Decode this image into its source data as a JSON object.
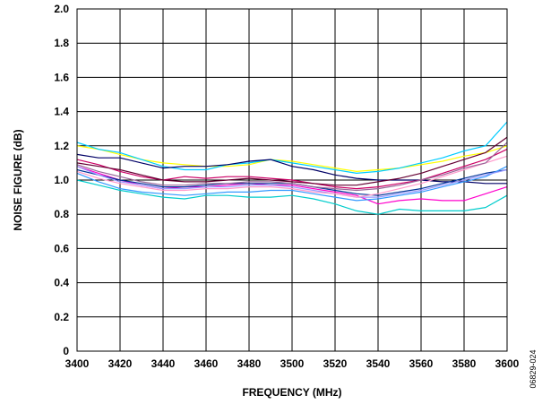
{
  "chart_data": {
    "type": "line",
    "title": "",
    "xlabel": "FREQUENCY (MHz)",
    "ylabel": "NOISE FIGURE (dB)",
    "xlim": [
      3400,
      3600
    ],
    "ylim": [
      0,
      2.0
    ],
    "xticks": [
      3400,
      3420,
      3440,
      3460,
      3480,
      3500,
      3520,
      3540,
      3560,
      3580,
      3600
    ],
    "yticks": [
      "0",
      "0.2",
      "0.4",
      "0.6",
      "0.8",
      "1.0",
      "1.2",
      "1.4",
      "1.6",
      "1.8",
      "2.0"
    ],
    "grid": true,
    "legend": "none",
    "x": [
      3400,
      3410,
      3420,
      3430,
      3440,
      3450,
      3460,
      3470,
      3480,
      3490,
      3500,
      3510,
      3520,
      3530,
      3540,
      3550,
      3560,
      3570,
      3580,
      3590,
      3600
    ],
    "series": [
      {
        "color": "#ffff00",
        "values": [
          1.2,
          1.18,
          1.15,
          1.12,
          1.1,
          1.09,
          1.08,
          1.08,
          1.09,
          1.12,
          1.11,
          1.09,
          1.07,
          1.05,
          1.06,
          1.07,
          1.09,
          1.11,
          1.14,
          1.16,
          1.2
        ]
      },
      {
        "color": "#00ccff",
        "values": [
          1.22,
          1.18,
          1.16,
          1.12,
          1.08,
          1.06,
          1.06,
          1.09,
          1.1,
          1.12,
          1.1,
          1.08,
          1.06,
          1.04,
          1.05,
          1.07,
          1.1,
          1.13,
          1.17,
          1.2,
          1.34
        ]
      },
      {
        "color": "#000066",
        "values": [
          1.15,
          1.13,
          1.13,
          1.1,
          1.07,
          1.08,
          1.08,
          1.09,
          1.11,
          1.12,
          1.08,
          1.06,
          1.03,
          1.01,
          1.0,
          1.0,
          1.0,
          0.99,
          0.99,
          0.98,
          0.98
        ]
      },
      {
        "color": "#cc0066",
        "values": [
          1.12,
          1.09,
          1.05,
          1.02,
          1.0,
          1.02,
          1.01,
          1.02,
          1.02,
          1.01,
          1.0,
          0.98,
          0.96,
          0.95,
          0.96,
          0.98,
          1.0,
          1.04,
          1.08,
          1.12,
          1.18
        ]
      },
      {
        "color": "#660033",
        "values": [
          1.1,
          1.08,
          1.06,
          1.03,
          1.0,
          0.99,
          0.99,
          1.0,
          1.01,
          1.0,
          0.99,
          0.98,
          0.97,
          0.97,
          0.99,
          1.01,
          1.04,
          1.08,
          1.12,
          1.16,
          1.25
        ]
      },
      {
        "color": "#ff00cc",
        "values": [
          1.08,
          1.04,
          1.0,
          0.97,
          0.95,
          0.96,
          0.96,
          0.97,
          0.98,
          0.97,
          0.97,
          0.95,
          0.93,
          0.91,
          0.86,
          0.88,
          0.89,
          0.88,
          0.88,
          0.92,
          0.96
        ]
      },
      {
        "color": "#003399",
        "values": [
          1.06,
          1.03,
          1.0,
          0.98,
          0.96,
          0.96,
          0.97,
          0.98,
          0.98,
          0.98,
          0.98,
          0.96,
          0.94,
          0.92,
          0.91,
          0.93,
          0.95,
          0.98,
          1.01,
          1.04,
          1.06
        ]
      },
      {
        "color": "#3399ff",
        "values": [
          1.04,
          0.99,
          0.95,
          0.93,
          0.92,
          0.91,
          0.92,
          0.93,
          0.93,
          0.94,
          0.94,
          0.92,
          0.9,
          0.88,
          0.89,
          0.91,
          0.93,
          0.96,
          0.99,
          1.02,
          1.08
        ]
      },
      {
        "color": "#00cccc",
        "values": [
          1.0,
          0.97,
          0.94,
          0.92,
          0.9,
          0.89,
          0.91,
          0.91,
          0.9,
          0.9,
          0.91,
          0.89,
          0.86,
          0.82,
          0.8,
          0.83,
          0.82,
          0.82,
          0.82,
          0.84,
          0.91
        ]
      },
      {
        "color": "#9999ff",
        "values": [
          1.08,
          1.03,
          0.99,
          0.97,
          0.95,
          0.95,
          0.96,
          0.96,
          0.97,
          0.97,
          0.96,
          0.94,
          0.92,
          0.9,
          0.9,
          0.92,
          0.94,
          0.97,
          1.0,
          1.03,
          1.06
        ]
      },
      {
        "color": "#ff99cc",
        "values": [
          1.05,
          1.01,
          0.98,
          0.96,
          0.94,
          0.94,
          0.95,
          0.95,
          0.96,
          0.96,
          0.95,
          0.93,
          0.92,
          0.9,
          0.92,
          0.95,
          0.98,
          1.02,
          1.06,
          1.1,
          1.14
        ]
      },
      {
        "color": "#996699",
        "values": [
          1.09,
          1.05,
          1.02,
          0.99,
          0.97,
          0.97,
          0.98,
          0.98,
          0.99,
          0.99,
          0.98,
          0.96,
          0.95,
          0.94,
          0.95,
          0.97,
          1.0,
          1.03,
          1.07,
          1.1,
          1.22
        ]
      }
    ]
  },
  "figure_id": "06829-024"
}
